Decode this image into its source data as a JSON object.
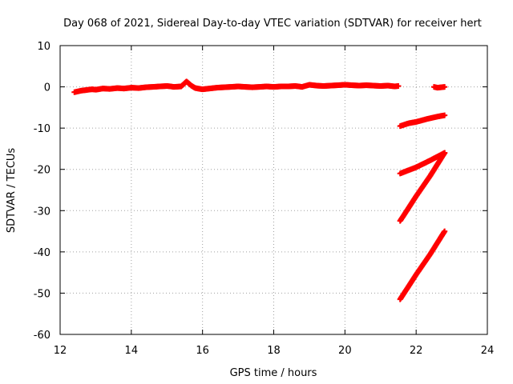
{
  "chart_data": {
    "type": "scatter",
    "title": "Day 068 of 2021, Sidereal Day-to-day VTEC variation (SDTVAR) for receiver hert",
    "xlabel": "GPS time / hours",
    "ylabel": "SDTVAR / TECUs",
    "xlim": [
      12,
      24
    ],
    "ylim": [
      -60,
      10
    ],
    "xticks": [
      "12",
      "14",
      "16",
      "18",
      "20",
      "22",
      "24"
    ],
    "yticks": [
      "10",
      "0",
      "-10",
      "-20",
      "-30",
      "-40",
      "-50",
      "-60"
    ],
    "grid": true,
    "marker": "plus",
    "color": "#ff0000",
    "series": [
      {
        "segment": "main",
        "points": [
          [
            12.4,
            -1.3
          ],
          [
            12.6,
            -0.9
          ],
          [
            12.9,
            -0.6
          ],
          [
            13.0,
            -0.7
          ],
          [
            13.2,
            -0.4
          ],
          [
            13.4,
            -0.5
          ],
          [
            13.6,
            -0.3
          ],
          [
            13.8,
            -0.4
          ],
          [
            14.0,
            -0.2
          ],
          [
            14.2,
            -0.3
          ],
          [
            14.4,
            -0.1
          ],
          [
            14.6,
            0.0
          ],
          [
            14.8,
            0.1
          ],
          [
            15.0,
            0.2
          ],
          [
            15.2,
            0.0
          ],
          [
            15.4,
            0.1
          ],
          [
            15.55,
            1.3
          ],
          [
            15.7,
            0.2
          ],
          [
            15.8,
            -0.3
          ],
          [
            16.0,
            -0.6
          ],
          [
            16.2,
            -0.4
          ],
          [
            16.4,
            -0.2
          ],
          [
            16.6,
            -0.1
          ],
          [
            16.8,
            0.0
          ],
          [
            17.0,
            0.1
          ],
          [
            17.2,
            0.0
          ],
          [
            17.4,
            -0.1
          ],
          [
            17.6,
            0.0
          ],
          [
            17.8,
            0.1
          ],
          [
            18.0,
            0.0
          ],
          [
            18.2,
            0.1
          ],
          [
            18.4,
            0.1
          ],
          [
            18.6,
            0.2
          ],
          [
            18.8,
            0.0
          ],
          [
            19.0,
            0.5
          ],
          [
            19.2,
            0.3
          ],
          [
            19.4,
            0.2
          ],
          [
            19.6,
            0.3
          ],
          [
            19.8,
            0.4
          ],
          [
            20.0,
            0.5
          ],
          [
            20.2,
            0.4
          ],
          [
            20.4,
            0.3
          ],
          [
            20.6,
            0.4
          ],
          [
            20.8,
            0.3
          ],
          [
            21.0,
            0.2
          ],
          [
            21.2,
            0.3
          ],
          [
            21.4,
            0.1
          ],
          [
            21.5,
            0.2
          ]
        ]
      },
      {
        "segment": "late-0",
        "points": [
          [
            22.5,
            0.0
          ],
          [
            22.6,
            -0.2
          ],
          [
            22.8,
            0.0
          ]
        ]
      },
      {
        "segment": "late-1",
        "points": [
          [
            21.55,
            -9.5
          ],
          [
            21.8,
            -8.8
          ],
          [
            22.0,
            -8.5
          ],
          [
            22.3,
            -7.8
          ],
          [
            22.6,
            -7.2
          ],
          [
            22.8,
            -6.9
          ]
        ]
      },
      {
        "segment": "late-2",
        "points": [
          [
            21.55,
            -21.0
          ],
          [
            22.0,
            -19.5
          ],
          [
            22.4,
            -17.8
          ],
          [
            22.8,
            -16.0
          ]
        ]
      },
      {
        "segment": "late-3",
        "points": [
          [
            21.55,
            -32.5
          ],
          [
            22.0,
            -26.5
          ],
          [
            22.4,
            -21.5
          ],
          [
            22.8,
            -16.0
          ]
        ]
      },
      {
        "segment": "late-4",
        "points": [
          [
            21.55,
            -51.5
          ],
          [
            22.0,
            -45.5
          ],
          [
            22.4,
            -40.5
          ],
          [
            22.8,
            -35.0
          ]
        ]
      }
    ]
  }
}
